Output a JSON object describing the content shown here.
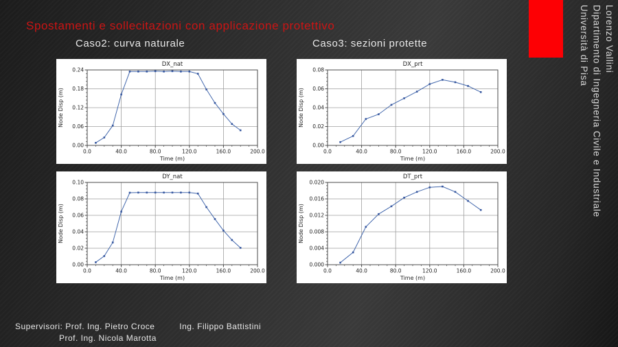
{
  "slide": {
    "title": "Spostamenti e sollecitazioni con applicazione protettivo",
    "headers": {
      "left": "Caso2: curva naturale",
      "right": "Caso3: sezioni protette"
    },
    "sidebar": {
      "lines": [
        "Lorenzo Vallini",
        "Dipartimento di Ingegneria Civile e Industriale",
        "Università di Pisa"
      ]
    },
    "footer": {
      "label": "Supervisori:",
      "supervisor1": "Prof. Ing. Pietro Croce",
      "supervisor2": "Ing. Filippo Battistini",
      "supervisor3": "Prof. Ing. Nicola Marotta"
    },
    "colors": {
      "title_red": "#cc1414",
      "accent_red": "#fd0004",
      "line_blue": "#4267ac",
      "marker_blue": "#35569e",
      "grid_gray": "#9e9e9e",
      "axis_dark": "#4a4a4a",
      "chart_text": "#222222"
    }
  },
  "chart_data": [
    {
      "type": "line",
      "title": "DX_nat",
      "xlabel": "Time (m)",
      "ylabel": "Node Disp  (m)",
      "xlim": [
        0,
        200
      ],
      "ylim": [
        0,
        0.24
      ],
      "xticks": [
        0,
        40,
        80,
        120,
        160,
        200
      ],
      "yticks": [
        0,
        0.06,
        0.12,
        0.18,
        0.24
      ],
      "x_decimals": 1,
      "y_decimals": 2,
      "x": [
        10,
        20,
        30,
        40,
        50,
        60,
        70,
        80,
        90,
        100,
        110,
        120,
        130,
        140,
        150,
        160,
        170,
        180
      ],
      "y": [
        0.008,
        0.025,
        0.063,
        0.162,
        0.235,
        0.235,
        0.235,
        0.236,
        0.235,
        0.236,
        0.235,
        0.235,
        0.228,
        0.178,
        0.135,
        0.1,
        0.068,
        0.048
      ]
    },
    {
      "type": "line",
      "title": "DX_prt",
      "xlabel": "Time (m)",
      "ylabel": "Node Disp  (m)",
      "xlim": [
        0,
        200
      ],
      "ylim": [
        0,
        0.08
      ],
      "xticks": [
        0,
        40,
        80,
        120,
        160,
        200
      ],
      "yticks": [
        0,
        0.02,
        0.04,
        0.06,
        0.08
      ],
      "x_decimals": 1,
      "y_decimals": 2,
      "x": [
        15,
        30,
        45,
        60,
        75,
        90,
        105,
        120,
        135,
        150,
        165,
        180
      ],
      "y": [
        0.0035,
        0.01,
        0.028,
        0.033,
        0.043,
        0.05,
        0.057,
        0.065,
        0.0695,
        0.067,
        0.063,
        0.0565
      ]
    },
    {
      "type": "line",
      "title": "DY_nat",
      "xlabel": "Time (m)",
      "ylabel": "Node Disp  (m)",
      "xlim": [
        0,
        200
      ],
      "ylim": [
        0,
        0.1
      ],
      "xticks": [
        0,
        40,
        80,
        120,
        160,
        200
      ],
      "yticks": [
        0,
        0.02,
        0.04,
        0.06,
        0.08,
        0.1
      ],
      "x_decimals": 1,
      "y_decimals": 2,
      "x": [
        10,
        20,
        30,
        40,
        50,
        60,
        70,
        80,
        90,
        100,
        110,
        120,
        130,
        140,
        150,
        160,
        170,
        180
      ],
      "y": [
        0.003,
        0.0105,
        0.027,
        0.0645,
        0.0875,
        0.0877,
        0.0877,
        0.0877,
        0.0877,
        0.0877,
        0.0877,
        0.0877,
        0.0865,
        0.07,
        0.0555,
        0.0415,
        0.03,
        0.0205
      ]
    },
    {
      "type": "line",
      "title": "DT_prt",
      "xlabel": "Time (m)",
      "ylabel": "Node Disp  (m)",
      "xlim": [
        0,
        200
      ],
      "ylim": [
        0,
        0.02
      ],
      "xticks": [
        0,
        40,
        80,
        120,
        160,
        200
      ],
      "yticks": [
        0,
        0.004,
        0.008,
        0.012,
        0.016,
        0.02
      ],
      "x_decimals": 1,
      "y_decimals": 3,
      "x": [
        15,
        30,
        45,
        60,
        75,
        90,
        105,
        120,
        135,
        150,
        165,
        180
      ],
      "y": [
        0.0005,
        0.003,
        0.0092,
        0.0123,
        0.0142,
        0.0163,
        0.0177,
        0.0188,
        0.019,
        0.0177,
        0.0155,
        0.0133
      ]
    }
  ]
}
